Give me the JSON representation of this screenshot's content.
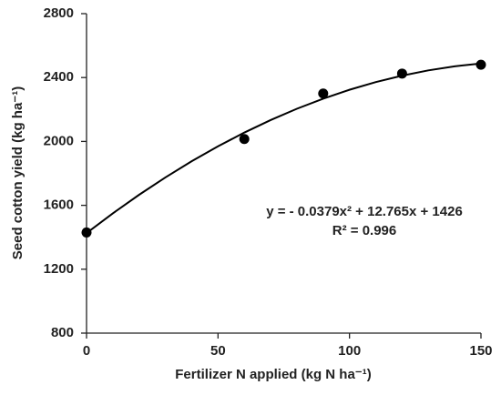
{
  "chart_data": {
    "type": "scatter",
    "xlabel": "Fertilizer N applied (kg N ha⁻¹)",
    "ylabel": "Seed cotton yield (kg ha⁻¹)",
    "annotations": [
      "y = - 0.0379x² + 12.765x + 1426",
      "R² = 0.996"
    ],
    "xlim": [
      0,
      150
    ],
    "xticks": [
      0,
      50,
      100,
      150
    ],
    "ylim": [
      800,
      2800
    ],
    "yticks": [
      800,
      1200,
      1600,
      2000,
      2400,
      2800
    ],
    "grid": false,
    "series": [
      {
        "type": "scatter",
        "color": "#000000",
        "x": [
          0,
          60,
          90,
          120,
          150
        ],
        "values": [
          1430,
          2015,
          2300,
          2425,
          2480
        ]
      },
      {
        "type": "line",
        "color": "#000000",
        "x": [
          0,
          10,
          20,
          30,
          40,
          50,
          60,
          70,
          80,
          90,
          100,
          110,
          120,
          130,
          140,
          150
        ],
        "values": [
          1426,
          1549.9,
          1666.1,
          1774.8,
          1876,
          1969.5,
          2055.5,
          2133.8,
          2204.6,
          2267.9,
          2323.5,
          2371.6,
          2412,
          2444.9,
          2470.3,
          2488
        ]
      }
    ]
  }
}
